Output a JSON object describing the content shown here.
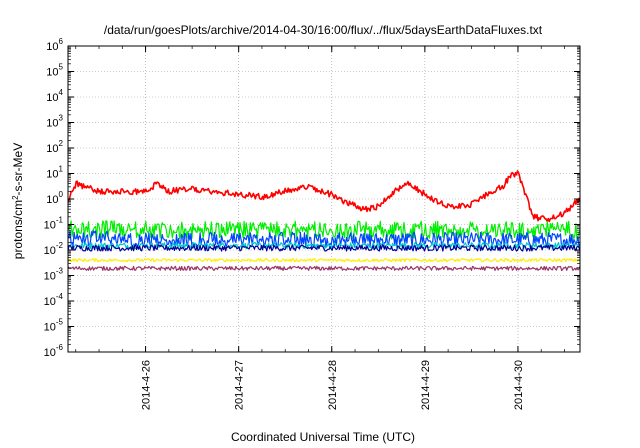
{
  "chart_data": {
    "type": "line",
    "title": "/data/run/goesPlots/archive/2014-04-30/16:00/flux/../flux/5daysEarthDataFluxes.txt",
    "xlabel": "Coordinated Universal Time (UTC)",
    "ylabel": {
      "pre": "protons/cm",
      "sup": "2",
      "post": "-s-sr-MeV"
    },
    "y_scale": "log",
    "ylim": [
      1e-06,
      1000000.0
    ],
    "y_ticks": [
      {
        "value": 1000000.0,
        "base": "10",
        "exp": "6"
      },
      {
        "value": 100000.0,
        "base": "10",
        "exp": "5"
      },
      {
        "value": 10000.0,
        "base": "10",
        "exp": "4"
      },
      {
        "value": 1000.0,
        "base": "10",
        "exp": "3"
      },
      {
        "value": 100.0,
        "base": "10",
        "exp": "2"
      },
      {
        "value": 10.0,
        "base": "10",
        "exp": "1"
      },
      {
        "value": 1.0,
        "base": "10",
        "exp": "0"
      },
      {
        "value": 0.1,
        "base": "10",
        "exp": "-1"
      },
      {
        "value": 0.01,
        "base": "10",
        "exp": "-2"
      },
      {
        "value": 0.001,
        "base": "10",
        "exp": "-3"
      },
      {
        "value": 0.0001,
        "base": "10",
        "exp": "-4"
      },
      {
        "value": 1e-05,
        "base": "10",
        "exp": "-5"
      },
      {
        "value": 1e-06,
        "base": "10",
        "exp": "-6"
      }
    ],
    "xlim": [
      "2014-04-25T04:00",
      "2014-04-30T16:00"
    ],
    "x_ticks": [
      {
        "value": "2014-04-26T00:00",
        "label": "2014-4-26"
      },
      {
        "value": "2014-04-27T00:00",
        "label": "2014-4-27"
      },
      {
        "value": "2014-04-28T00:00",
        "label": "2014-4-28"
      },
      {
        "value": "2014-04-29T00:00",
        "label": "2014-4-29"
      },
      {
        "value": "2014-04-30T00:00",
        "label": "2014-4-30"
      }
    ],
    "grid": true,
    "series": [
      {
        "color": "#ff0000",
        "noise": 0.12,
        "x": [
          "2014-04-25T04:00",
          "2014-04-25T06:00",
          "2014-04-25T12:00",
          "2014-04-25T18:00",
          "2014-04-26T00:00",
          "2014-04-26T03:00",
          "2014-04-26T06:00",
          "2014-04-26T12:00",
          "2014-04-26T18:00",
          "2014-04-27T00:00",
          "2014-04-27T06:00",
          "2014-04-27T12:00",
          "2014-04-27T18:00",
          "2014-04-28T00:00",
          "2014-04-28T04:00",
          "2014-04-28T08:00",
          "2014-04-28T12:00",
          "2014-04-28T16:00",
          "2014-04-28T20:00",
          "2014-04-29T00:00",
          "2014-04-29T04:00",
          "2014-04-29T08:00",
          "2014-04-29T12:00",
          "2014-04-29T16:00",
          "2014-04-29T20:00",
          "2014-04-29T22:00",
          "2014-04-30T00:00",
          "2014-04-30T04:00",
          "2014-04-30T08:00",
          "2014-04-30T12:00",
          "2014-04-30T16:00"
        ],
        "y": [
          0.8,
          4.0,
          2.0,
          2.0,
          2.0,
          4.0,
          2.0,
          2.5,
          2.0,
          1.5,
          1.2,
          2.0,
          3.0,
          1.5,
          0.7,
          0.4,
          0.5,
          2.0,
          4.0,
          1.5,
          0.7,
          0.5,
          0.6,
          1.5,
          3.0,
          8.0,
          10.0,
          0.2,
          0.15,
          0.3,
          1.0
        ]
      },
      {
        "color": "#00ee00",
        "noise": 0.35,
        "x": [
          "2014-04-25T04:00",
          "2014-04-26T00:00",
          "2014-04-27T00:00",
          "2014-04-28T00:00",
          "2014-04-29T00:00",
          "2014-04-30T00:00",
          "2014-04-30T16:00"
        ],
        "y": [
          0.07,
          0.06,
          0.06,
          0.06,
          0.06,
          0.06,
          0.06
        ]
      },
      {
        "color": "#0044ff",
        "noise": 0.3,
        "x": [
          "2014-04-25T04:00",
          "2014-04-26T00:00",
          "2014-04-27T00:00",
          "2014-04-28T00:00",
          "2014-04-29T00:00",
          "2014-04-30T00:00",
          "2014-04-30T16:00"
        ],
        "y": [
          0.03,
          0.025,
          0.025,
          0.025,
          0.025,
          0.025,
          0.025
        ]
      },
      {
        "color": "#00c8c8",
        "noise": 0.12,
        "x": [
          "2014-04-25T04:00",
          "2014-04-30T16:00"
        ],
        "y": [
          0.015,
          0.015
        ]
      },
      {
        "color": "#000099",
        "noise": 0.12,
        "x": [
          "2014-04-25T04:00",
          "2014-04-30T16:00"
        ],
        "y": [
          0.012,
          0.012
        ]
      },
      {
        "color": "#ffee00",
        "noise": 0.06,
        "x": [
          "2014-04-25T04:00",
          "2014-04-30T16:00"
        ],
        "y": [
          0.004,
          0.004
        ]
      },
      {
        "color": "#993366",
        "noise": 0.08,
        "x": [
          "2014-04-25T04:00",
          "2014-04-30T16:00"
        ],
        "y": [
          0.0019,
          0.0019
        ]
      }
    ]
  }
}
